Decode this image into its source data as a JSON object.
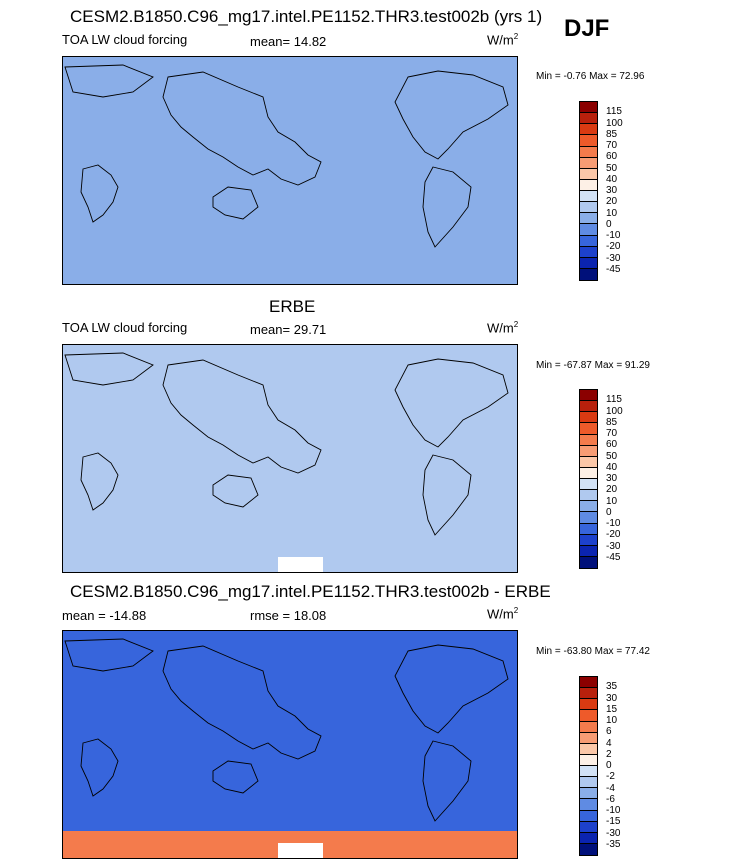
{
  "season": "DJF",
  "chart_data": [
    {
      "type": "heatmap",
      "title": "CESM2.B1850.C96_mg17.intel.PE1152.THR3.test002b (yrs 1)",
      "subtitle_left": "TOA LW cloud forcing",
      "stat_label": "mean=",
      "stat_value": "14.82",
      "units": "W/m",
      "units_sup": "2",
      "minmax": "Min =  -0.76 Max =  72.96",
      "levels": [
        "115",
        "100",
        "85",
        "70",
        "60",
        "50",
        "40",
        "30",
        "20",
        "10",
        "0",
        "-10",
        "-20",
        "-30",
        "-45"
      ],
      "colors": [
        "#8b0000",
        "#b8200c",
        "#d93a12",
        "#ee5a2a",
        "#f47b4c",
        "#f79c74",
        "#fbc7a8",
        "#fdf0e6",
        "#d2e2f6",
        "#b0c9ef",
        "#8aaee8",
        "#5f8be3",
        "#3765dc",
        "#1d41cc",
        "#0b24b0",
        "#00107a"
      ],
      "dominant_fill": "#8aaee8"
    },
    {
      "type": "heatmap",
      "title": "ERBE",
      "subtitle_left": "TOA LW cloud forcing",
      "stat_label": "mean=",
      "stat_value": "29.71",
      "units": "W/m",
      "units_sup": "2",
      "minmax": "Min = -67.87 Max =  91.29",
      "levels": [
        "115",
        "100",
        "85",
        "70",
        "60",
        "50",
        "40",
        "30",
        "20",
        "10",
        "0",
        "-10",
        "-20",
        "-30",
        "-45"
      ],
      "colors": [
        "#8b0000",
        "#b8200c",
        "#d93a12",
        "#ee5a2a",
        "#f47b4c",
        "#f79c74",
        "#fbc7a8",
        "#fdf0e6",
        "#d2e2f6",
        "#b0c9ef",
        "#8aaee8",
        "#5f8be3",
        "#3765dc",
        "#1d41cc",
        "#0b24b0",
        "#00107a"
      ],
      "dominant_fill": "#b0c9ef"
    },
    {
      "type": "heatmap",
      "title": "CESM2.B1850.C96_mg17.intel.PE1152.THR3.test002b - ERBE",
      "subtitle_left": "mean = -14.88",
      "stat_label": "rmse =",
      "stat_value": "18.08",
      "units": "W/m",
      "units_sup": "2",
      "minmax": "Min = -63.80 Max =  77.42",
      "levels": [
        "35",
        "30",
        "15",
        "10",
        "6",
        "4",
        "2",
        "0",
        "-2",
        "-4",
        "-6",
        "-10",
        "-15",
        "-30",
        "-35"
      ],
      "colors": [
        "#8b0000",
        "#b8200c",
        "#d93a12",
        "#ee5a2a",
        "#f47b4c",
        "#f79c74",
        "#fbc7a8",
        "#fdf0e6",
        "#d2e2f6",
        "#b0c9ef",
        "#8aaee8",
        "#5f8be3",
        "#3765dc",
        "#1d41cc",
        "#0b24b0",
        "#00107a"
      ],
      "dominant_fill": "#3765dc"
    }
  ]
}
